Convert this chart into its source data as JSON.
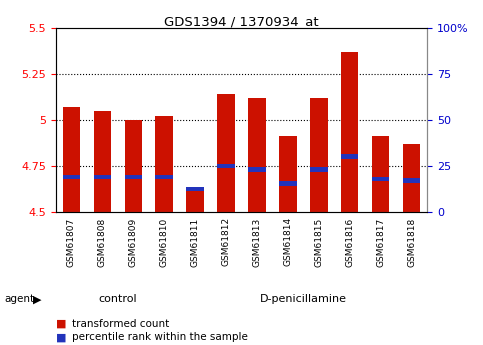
{
  "title": "GDS1394 / 1370934_at",
  "samples": [
    "GSM61807",
    "GSM61808",
    "GSM61809",
    "GSM61810",
    "GSM61811",
    "GSM61812",
    "GSM61813",
    "GSM61814",
    "GSM61815",
    "GSM61816",
    "GSM61817",
    "GSM61818"
  ],
  "red_values": [
    5.07,
    5.05,
    5.0,
    5.02,
    4.62,
    5.14,
    5.12,
    4.91,
    5.12,
    5.37,
    4.91,
    4.87
  ],
  "blue_values": [
    4.69,
    4.69,
    4.69,
    4.69,
    4.625,
    4.75,
    4.73,
    4.655,
    4.73,
    4.8,
    4.68,
    4.67
  ],
  "ylim": [
    4.5,
    5.5
  ],
  "yticks_left": [
    4.5,
    4.75,
    5.0,
    5.25,
    5.5
  ],
  "yticks_left_labels": [
    "4.5",
    "4.75",
    "5",
    "5.25",
    "5.5"
  ],
  "bar_color": "#cc1100",
  "blue_color": "#2233bb",
  "group_labels": [
    "control",
    "D-penicillamine"
  ],
  "group_color": "#77ee77",
  "agent_label": "agent",
  "legend_red": "transformed count",
  "legend_blue": "percentile rank within the sample",
  "bar_width": 0.55,
  "dotted_lines": [
    4.75,
    5.0,
    5.25
  ],
  "right_axis_color": "#0000cc",
  "right_ytick_labels": [
    "0",
    "25",
    "50",
    "75",
    "100%"
  ],
  "right_ytick_positions": [
    4.5,
    4.75,
    5.0,
    5.25,
    5.5
  ],
  "xtick_bg_color": "#d8d8d8",
  "spine_color": "#888888"
}
